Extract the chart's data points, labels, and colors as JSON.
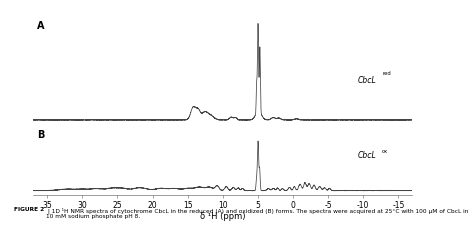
{
  "xlabel": "δ ¹H (ppm)",
  "xlim": [
    37,
    -17
  ],
  "x_ticks": [
    35,
    30,
    25,
    20,
    15,
    10,
    5,
    0,
    -5,
    -10,
    -15
  ],
  "panel_A_label": "A",
  "panel_B_label": "B",
  "label_A_text": "CbcL",
  "label_A_sup": "red",
  "label_B_text": "CbcL",
  "label_B_sup": "ox",
  "caption_bold": "FIGURE 2",
  "caption_rest": " | 1D ¹H NMR spectra of cytochrome CbcL in the reduced (A) and oxidized (B) forms. The spectra were acquired at 25°C with 100 μM of CbcL in 10 mM sodium phosphate pH 8.",
  "line_color": "#444444",
  "background_color": "#ffffff"
}
